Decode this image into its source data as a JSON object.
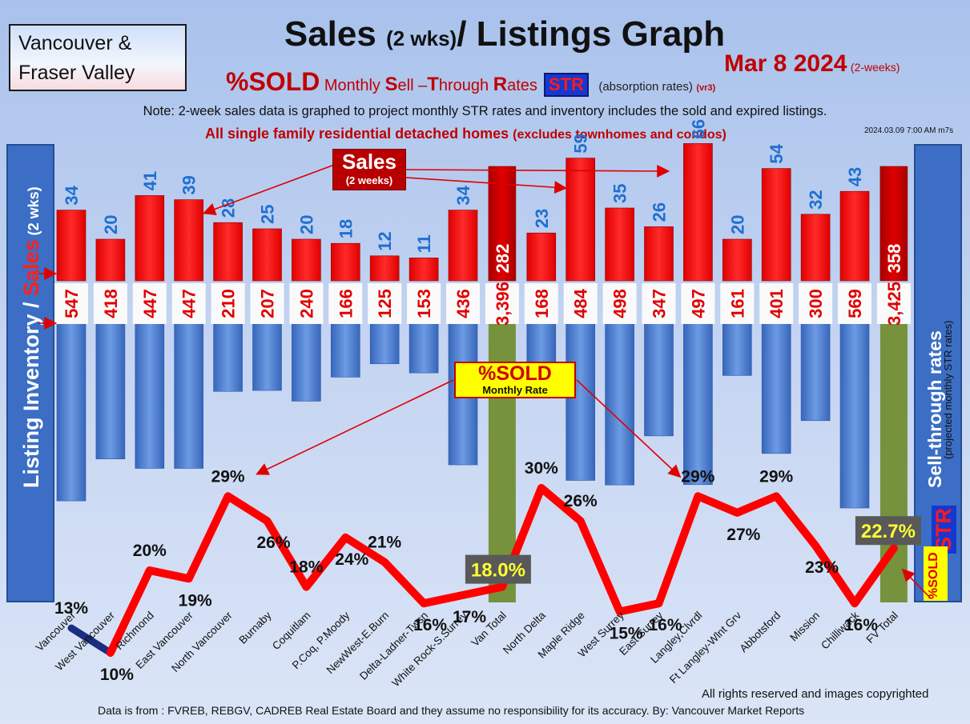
{
  "header": {
    "region_line1": "Vancouver &",
    "region_line2": "Fraser Valley",
    "title_a": "Sales ",
    "title_b": "(2 wks)",
    "title_c": "/ Listings Graph",
    "date": "Mar 8  2024",
    "date_suffix": "(2-weeks)",
    "pct_sold": "%SOLD",
    "monthly_a": " Monthly ",
    "s": "S",
    "ell": "ell –",
    "t": "T",
    "hrough": "hrough ",
    "r": "R",
    "ates": "ates",
    "str": "STR",
    "absorption": "(absorption rates)",
    "vr": "(vr3)",
    "note": "Note: 2-week sales data is graphed to project monthly STR rates and inventory includes the sold and expired listings.",
    "all_sf": "All single family residential detached homes ",
    "all_sf_small": "(excludes townhomes and condos)",
    "stamp": "2024.03.09 7:00 AM m7s"
  },
  "left_axis": {
    "a": "Listing Inventory / ",
    "b": "Sales",
    "c": " (2 wks)"
  },
  "right_axis": {
    "main": "Sell-through rates",
    "small": "(projected monthly STR rates)",
    "str": "STR",
    "pct": "%SOLD"
  },
  "callouts": {
    "sales_a": "Sales",
    "sales_b": "(2 weeks)",
    "pct_a": "%SOLD",
    "pct_b": "Monthly Rate"
  },
  "footer": {
    "copyright": "All rights reserved and  images copyrighted",
    "source": "Data is from : FVREB, REBGV, CADREB Real Estate Board and they assume no responsibility for its accuracy. By: Vancouver Market Reports"
  },
  "colors": {
    "sales": "#ff0000",
    "sales_total": "#c00000",
    "inventory": "#4a7fd0",
    "total_column": "#76923c",
    "str_line": "#ff0000",
    "sales_label": "#1f6fd1",
    "inventory_label": "#e00000"
  },
  "chart_data": {
    "type": "bar",
    "categories": [
      "Vancouver",
      "West Vancouver",
      "Richmond",
      "East Vancouver",
      "North Vancouver",
      "Burnaby",
      "Coquitlam",
      "P.Coq, P.Moody",
      "NewWest-E.Burn",
      "Delta-Ladner-Twsn",
      "White Rock-S.Surrey",
      "Van Total",
      "North Delta",
      "Maple Ridge",
      "West Surrey",
      "East Surrey",
      "Langley,Clvrdl",
      "Ft Langley-Wlnt Grv",
      "Abbotsford",
      "Mission",
      "Chilliwack",
      "FV Total"
    ],
    "series": [
      {
        "name": "Sales",
        "values": [
          34,
          20,
          41,
          39,
          28,
          25,
          20,
          18,
          12,
          11,
          34,
          282,
          23,
          59,
          35,
          26,
          66,
          20,
          54,
          32,
          43,
          358
        ],
        "labels": [
          "34",
          "20",
          "41",
          "39",
          "28",
          "25",
          "20",
          "18",
          "12",
          "11",
          "34",
          "282",
          "23",
          "59",
          "35",
          "26",
          "66",
          "20",
          "54",
          "32",
          "43",
          "358"
        ]
      },
      {
        "name": "Listing Inventory",
        "values": [
          547,
          418,
          447,
          447,
          210,
          207,
          240,
          166,
          125,
          153,
          436,
          3396,
          168,
          484,
          498,
          347,
          497,
          161,
          401,
          300,
          569,
          3425
        ],
        "labels": [
          "547",
          "418",
          "447",
          "447",
          "210",
          "207",
          "240",
          "166",
          "125",
          "153",
          "436",
          "3,396",
          "168",
          "484",
          "498",
          "347",
          "497",
          "161",
          "401",
          "300",
          "569",
          "3,425"
        ]
      },
      {
        "name": "%SOLD Monthly Rate",
        "values": [
          13,
          10,
          20,
          19,
          29,
          26,
          18,
          24,
          21,
          16,
          17,
          18.0,
          30,
          26,
          15,
          16,
          29,
          27,
          29,
          23,
          16,
          22.7
        ],
        "labels": [
          "13%",
          "10%",
          "20%",
          "19%",
          "29%",
          "26%",
          "18%",
          "24%",
          "21%",
          "16%",
          "17%",
          "18.0%",
          "30%",
          "26%",
          "15%",
          "16%",
          "29%",
          "27%",
          "29%",
          "23%",
          "16%",
          "22.7%"
        ]
      }
    ],
    "total_categories": [
      "Van Total",
      "FV Total"
    ],
    "grid": false
  }
}
